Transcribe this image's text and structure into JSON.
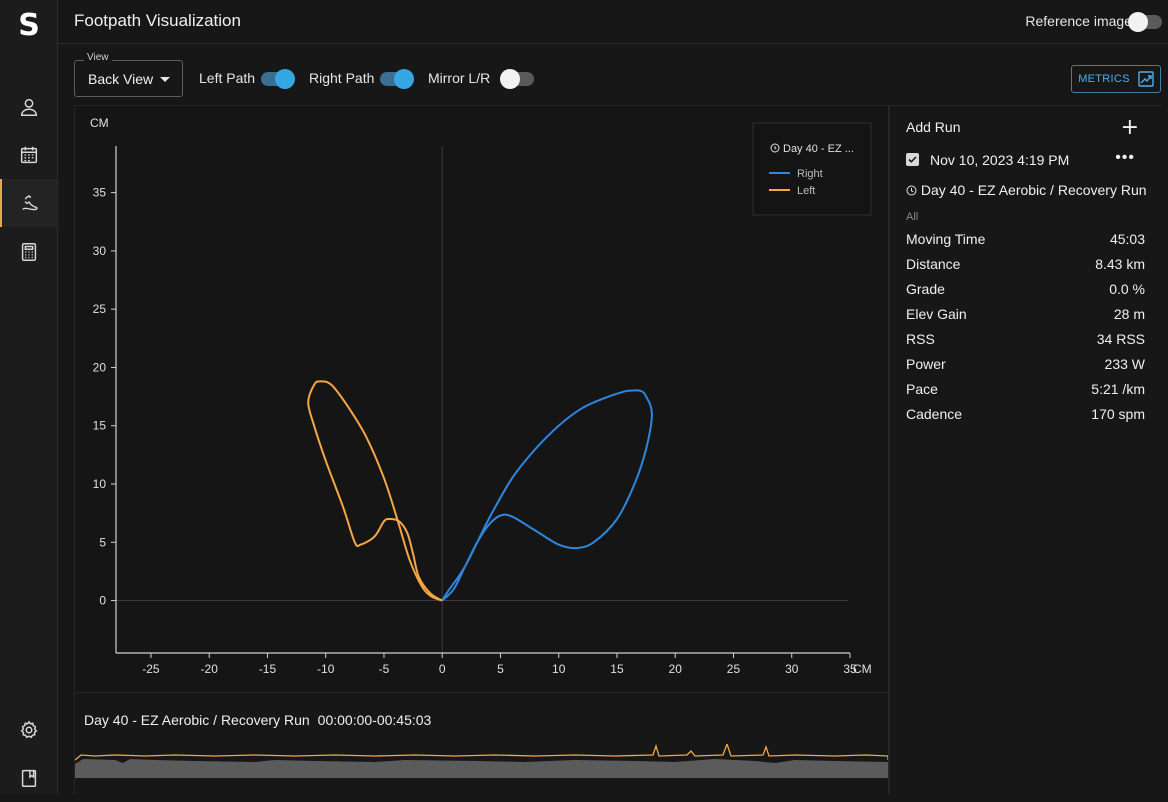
{
  "app": {
    "logo_letter": "S",
    "title": "Footpath Visualization",
    "reference_label": "Reference image"
  },
  "sidebar": {
    "items": [
      {
        "icon": "user-icon"
      },
      {
        "icon": "calendar-icon"
      },
      {
        "icon": "footpath-icon",
        "active": true
      },
      {
        "icon": "calculator-icon"
      },
      {
        "icon": "settings-icon"
      },
      {
        "icon": "book-icon"
      }
    ]
  },
  "controls": {
    "view_legend": "View",
    "view_value": "Back View",
    "left_path_label": "Left Path",
    "left_path_on": true,
    "right_path_label": "Right Path",
    "right_path_on": true,
    "mirror_label": "Mirror L/R",
    "mirror_on": false,
    "metrics_label": "METRICS"
  },
  "colors": {
    "right": "#2e86de",
    "left": "#f4a742",
    "accent": "#35a8e4"
  },
  "chart_data": {
    "type": "line",
    "ylabel": "CM",
    "xlabel": "CM",
    "xlim": [
      -28,
      35
    ],
    "ylim": [
      -4.5,
      39
    ],
    "x_ticks": [
      -25,
      -20,
      -15,
      -10,
      -5,
      0,
      5,
      10,
      15,
      20,
      25,
      30,
      35
    ],
    "y_ticks": [
      0,
      5,
      10,
      15,
      20,
      25,
      30,
      35
    ],
    "legend": {
      "title": "Day 40 - EZ ...",
      "placement": "top-right"
    },
    "series": [
      {
        "name": "Right",
        "color": "#2e86de",
        "x": [
          0,
          1,
          2,
          3,
          4,
          5,
          6,
          8,
          10,
          11.5,
          13,
          15,
          16.5,
          17.5,
          18,
          17.5,
          17,
          16,
          15.5,
          14,
          12,
          10,
          8,
          6,
          4,
          2,
          0.5,
          0
        ],
        "y": [
          0,
          1,
          3,
          5,
          6.5,
          7.3,
          7.2,
          6,
          4.8,
          4.5,
          5,
          7,
          10,
          13,
          16,
          17.5,
          18,
          18,
          17.9,
          17.4,
          16.5,
          15,
          13,
          10.5,
          7,
          3,
          0.8,
          0
        ]
      },
      {
        "name": "Left",
        "color": "#f4a742",
        "x": [
          0,
          -1,
          -2,
          -2.5,
          -3,
          -3.7,
          -4.5,
          -5,
          -5.8,
          -7,
          -7.5,
          -8.5,
          -10,
          -11,
          -11.5,
          -11,
          -10.5,
          -9.5,
          -8,
          -6.5,
          -5,
          -3.8,
          -2.8,
          -1.8,
          -1,
          0
        ],
        "y": [
          0,
          0.6,
          2,
          4,
          5.8,
          6.8,
          7,
          6.8,
          5.5,
          4.8,
          5,
          8,
          12,
          15,
          17,
          18.5,
          18.8,
          18.5,
          16.5,
          14,
          10.5,
          6.8,
          3.5,
          1.3,
          0.4,
          0
        ]
      }
    ]
  },
  "run": {
    "add_run_label": "Add Run",
    "date": "Nov 10, 2023 4:19 PM",
    "name": "Day 40 - EZ Aerobic / Recovery Run",
    "filter_label": "All",
    "metrics": [
      {
        "label": "Moving Time",
        "value": "45:03"
      },
      {
        "label": "Distance",
        "value": "8.43 km"
      },
      {
        "label": "Grade",
        "value": "0.0 %"
      },
      {
        "label": "Elev Gain",
        "value": "28 m"
      },
      {
        "label": "RSS",
        "value": "34 RSS"
      },
      {
        "label": "Power",
        "value": "233 W"
      },
      {
        "label": "Pace",
        "value": "5:21 /km"
      },
      {
        "label": "Cadence",
        "value": "170 spm"
      }
    ]
  },
  "timeline": {
    "title": "Day 40 - EZ Aerobic / Recovery Run",
    "range": "00:00:00-00:45:03"
  }
}
